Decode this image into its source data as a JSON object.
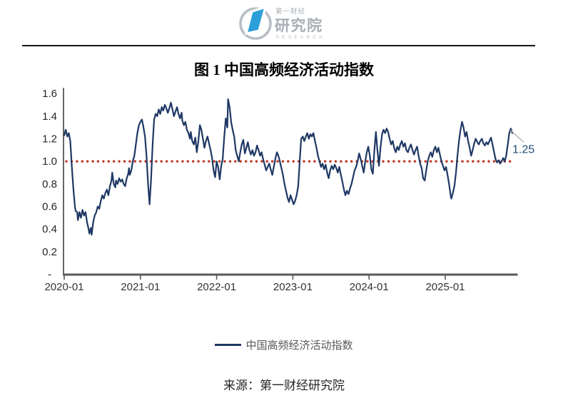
{
  "logo": {
    "line1": "第一财经",
    "line2": "研究院",
    "line3": "RESEARCH",
    "blue": "#2d9fd8",
    "gray": "#a9afb6"
  },
  "title": "图 1  中国高频经济活动指数",
  "legend_label": "中国高频经济活动指数",
  "source": "来源：第一财经研究院",
  "chart_data": {
    "type": "line",
    "title": "图 1 中国高频经济活动指数",
    "xlabel": "",
    "ylabel": "",
    "grid": false,
    "legend_position": "bottom",
    "x_tick_labels": [
      "2020-01",
      "2021-01",
      "2022-01",
      "2023-01",
      "2024-01",
      "2025-01"
    ],
    "x_tick_years": [
      0,
      1,
      2,
      3,
      4,
      5
    ],
    "y_tick_labels": [
      "1.6",
      "1.4",
      "1.2",
      "1.0",
      "0.8",
      "0.6",
      "0.4",
      "0.2",
      "-"
    ],
    "y_tick_values": [
      1.6,
      1.4,
      1.2,
      1.0,
      0.8,
      0.6,
      0.4,
      0.2,
      0
    ],
    "ylim": [
      0,
      1.65
    ],
    "xlim": [
      0,
      5.95
    ],
    "reference_line": {
      "value": 1.0,
      "color": "#c0392b",
      "style": "dotted"
    },
    "annotation": {
      "text": "1.25",
      "x": 5.88,
      "y": 1.25
    },
    "series": [
      {
        "name": "中国高频经济活动指数",
        "color": "#1f3864",
        "points": [
          [
            0,
            1.23
          ],
          [
            0.02,
            1.28
          ],
          [
            0.04,
            1.22
          ],
          [
            0.06,
            1.25
          ],
          [
            0.08,
            1.18
          ],
          [
            0.1,
            0.95
          ],
          [
            0.12,
            0.76
          ],
          [
            0.14,
            0.6
          ],
          [
            0.15,
            0.56
          ],
          [
            0.17,
            0.55
          ],
          [
            0.18,
            0.48
          ],
          [
            0.2,
            0.55
          ],
          [
            0.22,
            0.5
          ],
          [
            0.24,
            0.57
          ],
          [
            0.26,
            0.52
          ],
          [
            0.28,
            0.55
          ],
          [
            0.3,
            0.46
          ],
          [
            0.32,
            0.4
          ],
          [
            0.33,
            0.36
          ],
          [
            0.35,
            0.41
          ],
          [
            0.36,
            0.35
          ],
          [
            0.38,
            0.46
          ],
          [
            0.4,
            0.52
          ],
          [
            0.42,
            0.55
          ],
          [
            0.44,
            0.6
          ],
          [
            0.46,
            0.58
          ],
          [
            0.48,
            0.65
          ],
          [
            0.5,
            0.7
          ],
          [
            0.52,
            0.67
          ],
          [
            0.54,
            0.72
          ],
          [
            0.56,
            0.75
          ],
          [
            0.58,
            0.7
          ],
          [
            0.6,
            0.78
          ],
          [
            0.62,
            0.83
          ],
          [
            0.63,
            0.9
          ],
          [
            0.65,
            0.8
          ],
          [
            0.67,
            0.77
          ],
          [
            0.68,
            0.83
          ],
          [
            0.7,
            0.8
          ],
          [
            0.72,
            0.85
          ],
          [
            0.74,
            0.82
          ],
          [
            0.76,
            0.84
          ],
          [
            0.78,
            0.8
          ],
          [
            0.8,
            0.78
          ],
          [
            0.82,
            0.85
          ],
          [
            0.84,
            0.89
          ],
          [
            0.85,
            0.94
          ],
          [
            0.86,
            0.88
          ],
          [
            0.88,
            0.92
          ],
          [
            0.9,
            1
          ],
          [
            0.92,
            1.05
          ],
          [
            0.94,
            1.15
          ],
          [
            0.96,
            1.25
          ],
          [
            0.98,
            1.32
          ],
          [
            1,
            1.35
          ],
          [
            1.02,
            1.37
          ],
          [
            1.04,
            1.3
          ],
          [
            1.06,
            1.22
          ],
          [
            1.08,
            1.05
          ],
          [
            1.1,
            0.8
          ],
          [
            1.12,
            0.62
          ],
          [
            1.14,
            0.85
          ],
          [
            1.16,
            1.15
          ],
          [
            1.18,
            1.37
          ],
          [
            1.2,
            1.42
          ],
          [
            1.22,
            1.4
          ],
          [
            1.24,
            1.46
          ],
          [
            1.26,
            1.42
          ],
          [
            1.28,
            1.48
          ],
          [
            1.3,
            1.45
          ],
          [
            1.32,
            1.5
          ],
          [
            1.34,
            1.47
          ],
          [
            1.36,
            1.43
          ],
          [
            1.38,
            1.47
          ],
          [
            1.4,
            1.52
          ],
          [
            1.42,
            1.46
          ],
          [
            1.44,
            1.4
          ],
          [
            1.46,
            1.44
          ],
          [
            1.48,
            1.48
          ],
          [
            1.5,
            1.42
          ],
          [
            1.52,
            1.38
          ],
          [
            1.54,
            1.43
          ],
          [
            1.55,
            1.36
          ],
          [
            1.57,
            1.32
          ],
          [
            1.59,
            1.35
          ],
          [
            1.61,
            1.28
          ],
          [
            1.63,
            1.25
          ],
          [
            1.65,
            1.2
          ],
          [
            1.66,
            1.26
          ],
          [
            1.68,
            1.18
          ],
          [
            1.7,
            1.15
          ],
          [
            1.72,
            1.21
          ],
          [
            1.74,
            1.08
          ],
          [
            1.76,
            1.18
          ],
          [
            1.78,
            1.32
          ],
          [
            1.8,
            1.28
          ],
          [
            1.82,
            1.2
          ],
          [
            1.84,
            1.12
          ],
          [
            1.86,
            1.18
          ],
          [
            1.88,
            1.22
          ],
          [
            1.9,
            1.16
          ],
          [
            1.92,
            1.1
          ],
          [
            1.94,
            1.03
          ],
          [
            1.96,
            0.92
          ],
          [
            1.98,
            0.86
          ],
          [
            2,
            1
          ],
          [
            2.02,
            0.95
          ],
          [
            2.04,
            0.84
          ],
          [
            2.06,
            0.96
          ],
          [
            2.08,
            1.02
          ],
          [
            2.1,
            1.22
          ],
          [
            2.12,
            1.38
          ],
          [
            2.14,
            1.3
          ],
          [
            2.15,
            1.55
          ],
          [
            2.17,
            1.48
          ],
          [
            2.19,
            1.35
          ],
          [
            2.21,
            1.28
          ],
          [
            2.23,
            1.22
          ],
          [
            2.25,
            1.1
          ],
          [
            2.27,
            1.05
          ],
          [
            2.29,
            1
          ],
          [
            2.31,
            1.08
          ],
          [
            2.33,
            1.15
          ],
          [
            2.35,
            1.19
          ],
          [
            2.37,
            1.07
          ],
          [
            2.39,
            1.12
          ],
          [
            2.41,
            1.17
          ],
          [
            2.43,
            1.1
          ],
          [
            2.45,
            1.06
          ],
          [
            2.47,
            1.1
          ],
          [
            2.49,
            1.05
          ],
          [
            2.51,
            1.08
          ],
          [
            2.53,
            1.14
          ],
          [
            2.55,
            1.1
          ],
          [
            2.57,
            1.05
          ],
          [
            2.59,
            1.08
          ],
          [
            2.61,
            1.02
          ],
          [
            2.63,
            0.97
          ],
          [
            2.65,
            0.92
          ],
          [
            2.67,
            0.95
          ],
          [
            2.69,
            0.98
          ],
          [
            2.71,
            0.93
          ],
          [
            2.73,
            0.88
          ],
          [
            2.75,
            0.95
          ],
          [
            2.77,
            1.02
          ],
          [
            2.79,
            1.08
          ],
          [
            2.81,
            1.05
          ],
          [
            2.83,
            1
          ],
          [
            2.85,
            0.94
          ],
          [
            2.87,
            0.88
          ],
          [
            2.89,
            0.8
          ],
          [
            2.91,
            0.74
          ],
          [
            2.93,
            0.68
          ],
          [
            2.95,
            0.64
          ],
          [
            2.97,
            0.7
          ],
          [
            2.99,
            0.66
          ],
          [
            3.01,
            0.62
          ],
          [
            3.03,
            0.65
          ],
          [
            3.05,
            0.7
          ],
          [
            3.07,
            0.78
          ],
          [
            3.09,
            1
          ],
          [
            3.11,
            1.2
          ],
          [
            3.13,
            1.22
          ],
          [
            3.15,
            1.18
          ],
          [
            3.17,
            1.22
          ],
          [
            3.19,
            1.25
          ],
          [
            3.21,
            1.2
          ],
          [
            3.23,
            1.24
          ],
          [
            3.25,
            1.22
          ],
          [
            3.27,
            1.25
          ],
          [
            3.29,
            1.18
          ],
          [
            3.31,
            1.12
          ],
          [
            3.33,
            1.05
          ],
          [
            3.35,
            1
          ],
          [
            3.37,
            0.95
          ],
          [
            3.39,
            0.98
          ],
          [
            3.41,
            0.93
          ],
          [
            3.43,
            0.97
          ],
          [
            3.45,
            0.9
          ],
          [
            3.47,
            0.85
          ],
          [
            3.49,
            0.92
          ],
          [
            3.51,
            0.96
          ],
          [
            3.53,
            0.93
          ],
          [
            3.55,
            0.97
          ],
          [
            3.57,
            0.94
          ],
          [
            3.59,
            0.9
          ],
          [
            3.61,
            0.95
          ],
          [
            3.63,
            0.88
          ],
          [
            3.65,
            0.82
          ],
          [
            3.67,
            0.75
          ],
          [
            3.69,
            0.7
          ],
          [
            3.71,
            0.74
          ],
          [
            3.73,
            0.71
          ],
          [
            3.75,
            0.76
          ],
          [
            3.77,
            0.8
          ],
          [
            3.79,
            0.86
          ],
          [
            3.81,
            0.92
          ],
          [
            3.83,
            0.95
          ],
          [
            3.85,
            1
          ],
          [
            3.87,
            1.07
          ],
          [
            3.89,
            1.02
          ],
          [
            3.91,
            0.96
          ],
          [
            3.93,
            0.9
          ],
          [
            3.95,
            1
          ],
          [
            3.97,
            1.08
          ],
          [
            3.99,
            1.13
          ],
          [
            4.01,
            1.05
          ],
          [
            4.03,
            0.93
          ],
          [
            4.05,
            0.89
          ],
          [
            4.07,
            1.1
          ],
          [
            4.09,
            1.26
          ],
          [
            4.11,
            1.1
          ],
          [
            4.13,
            0.96
          ],
          [
            4.15,
            1.12
          ],
          [
            4.17,
            1.24
          ],
          [
            4.19,
            1.28
          ],
          [
            4.21,
            1.25
          ],
          [
            4.23,
            1.29
          ],
          [
            4.25,
            1.26
          ],
          [
            4.27,
            1.2
          ],
          [
            4.29,
            1.15
          ],
          [
            4.31,
            1.18
          ],
          [
            4.33,
            1.12
          ],
          [
            4.35,
            1.08
          ],
          [
            4.37,
            1.13
          ],
          [
            4.39,
            1.1
          ],
          [
            4.41,
            1.15
          ],
          [
            4.43,
            1.18
          ],
          [
            4.45,
            1.13
          ],
          [
            4.47,
            1.16
          ],
          [
            4.49,
            1.1
          ],
          [
            4.51,
            1.08
          ],
          [
            4.53,
            1.12
          ],
          [
            4.55,
            1.15
          ],
          [
            4.57,
            1.1
          ],
          [
            4.59,
            1.06
          ],
          [
            4.61,
            1.1
          ],
          [
            4.63,
            1.13
          ],
          [
            4.65,
            1.05
          ],
          [
            4.67,
            0.98
          ],
          [
            4.69,
            0.94
          ],
          [
            4.71,
            0.85
          ],
          [
            4.73,
            0.83
          ],
          [
            4.75,
            0.92
          ],
          [
            4.77,
            1
          ],
          [
            4.79,
            1.05
          ],
          [
            4.81,
            1.08
          ],
          [
            4.83,
            1.04
          ],
          [
            4.85,
            1.1
          ],
          [
            4.87,
            1.13
          ],
          [
            4.89,
            1.08
          ],
          [
            4.91,
            1.12
          ],
          [
            4.93,
            1.06
          ],
          [
            4.95,
            1
          ],
          [
            4.97,
            0.96
          ],
          [
            4.99,
            0.92
          ],
          [
            5.01,
            0.95
          ],
          [
            5.03,
            0.88
          ],
          [
            5.05,
            0.8
          ],
          [
            5.07,
            0.7
          ],
          [
            5.08,
            0.67
          ],
          [
            5.1,
            0.72
          ],
          [
            5.12,
            0.78
          ],
          [
            5.14,
            0.9
          ],
          [
            5.16,
            1.05
          ],
          [
            5.18,
            1.18
          ],
          [
            5.2,
            1.28
          ],
          [
            5.22,
            1.35
          ],
          [
            5.24,
            1.3
          ],
          [
            5.26,
            1.22
          ],
          [
            5.28,
            1.26
          ],
          [
            5.3,
            1.18
          ],
          [
            5.32,
            1.12
          ],
          [
            5.34,
            1.05
          ],
          [
            5.36,
            1.1
          ],
          [
            5.38,
            1.16
          ],
          [
            5.4,
            1.2
          ],
          [
            5.42,
            1.17
          ],
          [
            5.44,
            1.15
          ],
          [
            5.46,
            1.18
          ],
          [
            5.48,
            1.2
          ],
          [
            5.5,
            1.16
          ],
          [
            5.52,
            1.14
          ],
          [
            5.54,
            1.17
          ],
          [
            5.56,
            1.15
          ],
          [
            5.58,
            1.18
          ],
          [
            5.6,
            1.21
          ],
          [
            5.62,
            1.15
          ],
          [
            5.64,
            1.08
          ],
          [
            5.66,
            1.02
          ],
          [
            5.68,
            0.99
          ],
          [
            5.7,
            1.01
          ],
          [
            5.72,
            0.98
          ],
          [
            5.74,
            1
          ],
          [
            5.76,
            1.03
          ],
          [
            5.78,
            1
          ],
          [
            5.8,
            1.05
          ],
          [
            5.82,
            1.15
          ],
          [
            5.84,
            1.25
          ],
          [
            5.86,
            1.29
          ],
          [
            5.88,
            1.25
          ]
        ]
      }
    ]
  }
}
